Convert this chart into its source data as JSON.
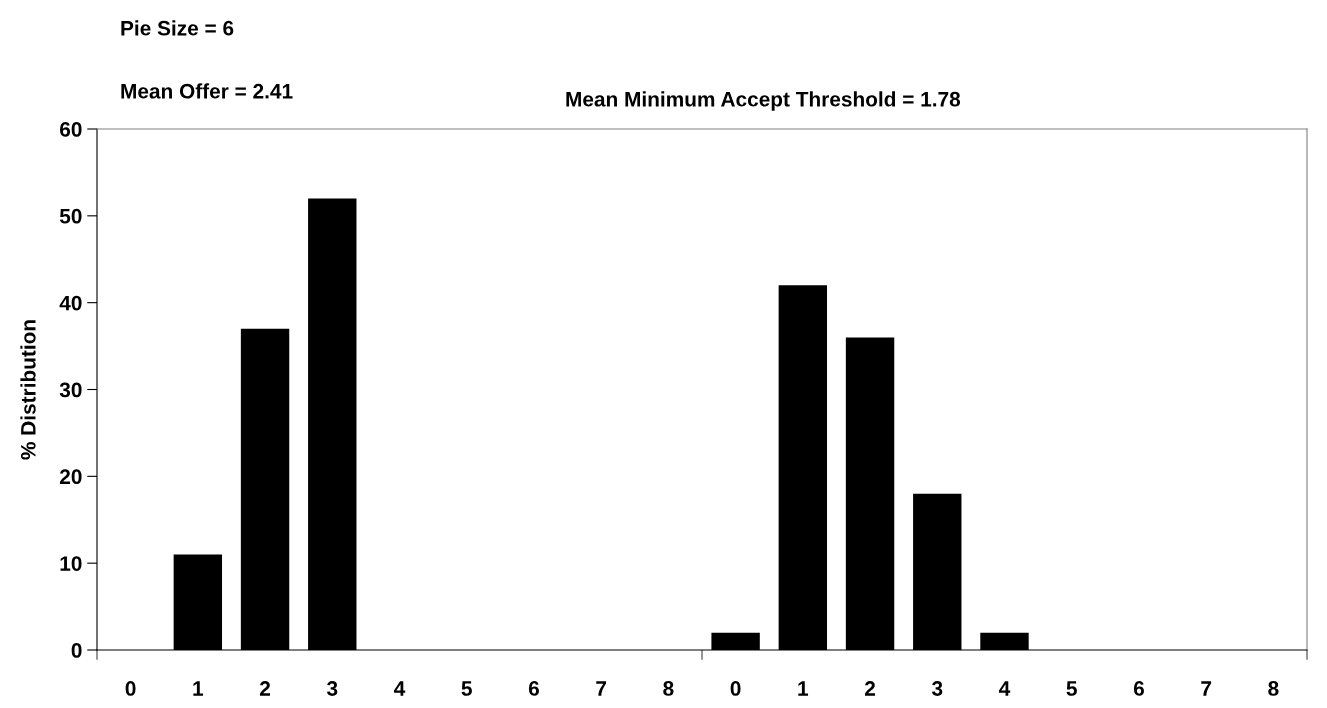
{
  "chart_data": {
    "type": "bar",
    "title": "Pie Size = 6",
    "ylabel": "% Distribution",
    "annotations": [
      "Mean Offer = 2.41",
      "Mean Minimum Accept Threshold = 1.78"
    ],
    "categories": [
      "0",
      "1",
      "2",
      "3",
      "4",
      "5",
      "6",
      "7",
      "8",
      "0",
      "1",
      "2",
      "3",
      "4",
      "5",
      "6",
      "7",
      "8"
    ],
    "values": [
      0,
      11,
      37,
      52,
      0,
      0,
      0,
      0,
      0,
      2,
      42,
      36,
      18,
      2,
      0,
      0,
      0,
      0
    ],
    "color": "#000000",
    "ylim": [
      0,
      60
    ],
    "yticks": [
      0,
      10,
      20,
      30,
      40,
      50,
      60
    ],
    "grid": false,
    "legend": false
  }
}
